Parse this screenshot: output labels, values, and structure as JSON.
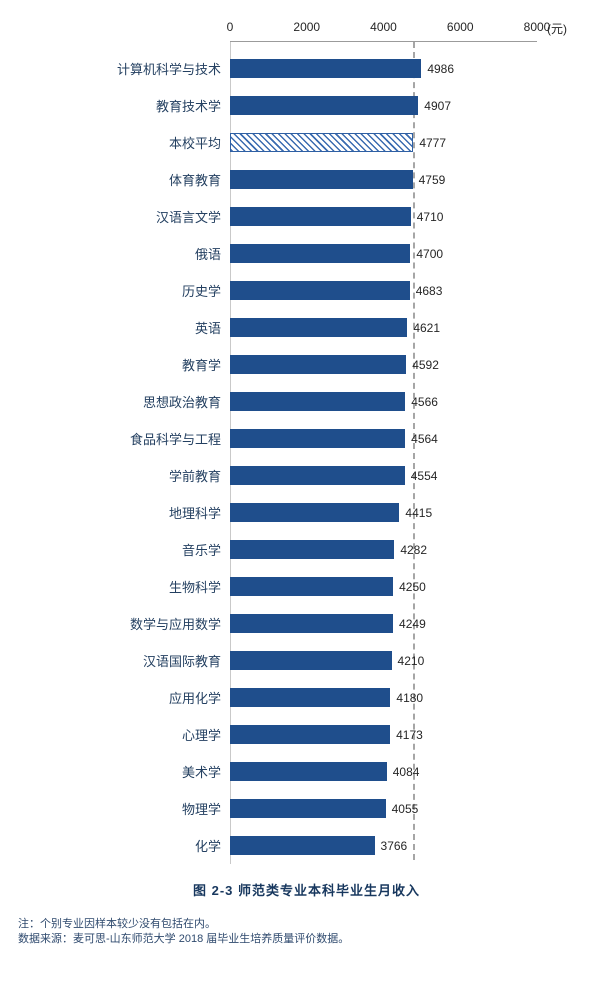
{
  "chart_data": {
    "type": "bar",
    "orientation": "horizontal",
    "title": "师范类专业本科毕业生月收入",
    "unit_label": "(元)",
    "xlim": [
      0,
      8000
    ],
    "x_ticks": [
      0,
      2000,
      4000,
      6000,
      8000
    ],
    "categories": [
      "计算机科学与技术",
      "教育技术学",
      "本校平均",
      "体育教育",
      "汉语言文学",
      "俄语",
      "历史学",
      "英语",
      "教育学",
      "思想政治教育",
      "食品科学与工程",
      "学前教育",
      "地理科学",
      "音乐学",
      "生物科学",
      "数学与应用数学",
      "汉语国际教育",
      "应用化学",
      "心理学",
      "美术学",
      "物理学",
      "化学"
    ],
    "values": [
      4986,
      4907,
      4777,
      4759,
      4710,
      4700,
      4683,
      4621,
      4592,
      4566,
      4564,
      4554,
      4415,
      4282,
      4250,
      4249,
      4210,
      4180,
      4173,
      4084,
      4055,
      3766
    ],
    "average_category": "本校平均",
    "reference_line_value": 4777,
    "legend_position": "none",
    "grid": false
  },
  "caption": "图 2-3    师范类专业本科毕业生月收入",
  "notes": [
    "注：个别专业因样本较少没有包括在内。",
    "数据来源：麦可思-山东师范大学 2018 届毕业生培养质量评价数据。"
  ],
  "colors": {
    "bar": "#1f4e8c",
    "hatched_bar_stripe": "#3a6bb0",
    "reference_line": "#a6a6a6",
    "label_text": "#244061",
    "value_text": "#262626",
    "caption_text": "#17375e"
  }
}
